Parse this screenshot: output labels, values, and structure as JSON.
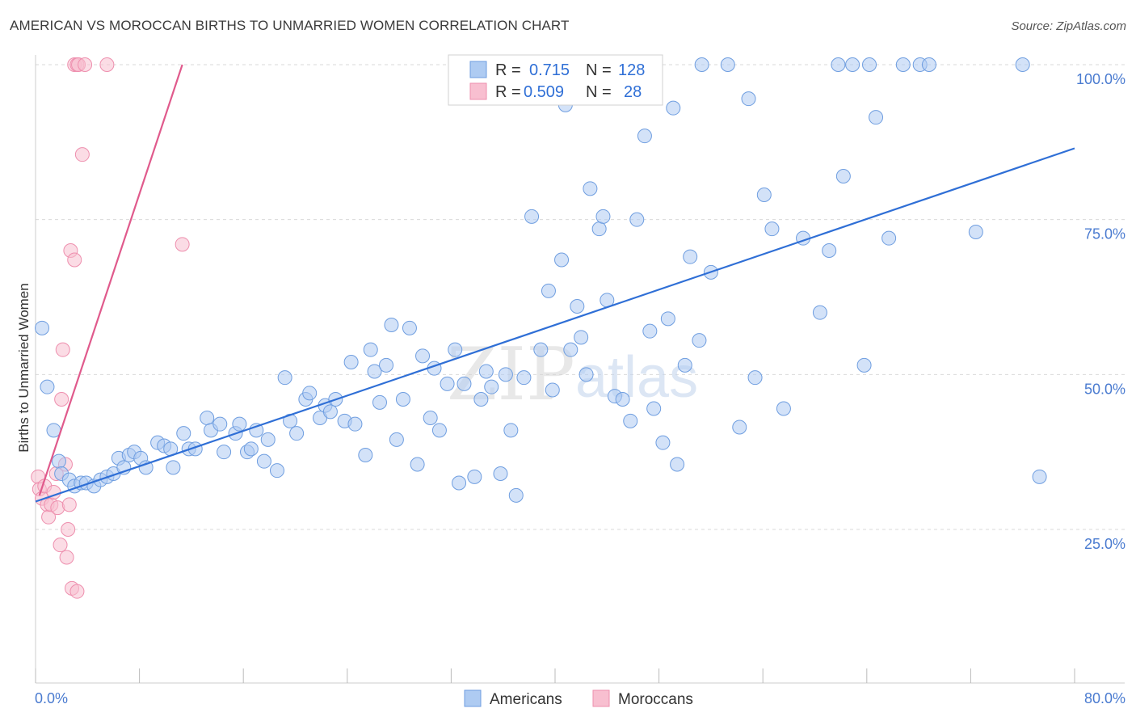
{
  "title": "AMERICAN VS MOROCCAN BIRTHS TO UNMARRIED WOMEN CORRELATION CHART",
  "source": "Source: ZipAtlas.com",
  "watermark": {
    "part1": "ZIP",
    "part2": "atlas"
  },
  "colors": {
    "americans_fill": "#aecbf2",
    "americans_stroke": "#6f9ee0",
    "americans_line": "#2f6fd6",
    "moroccans_fill": "#f8bfd0",
    "moroccans_stroke": "#ee8fae",
    "moroccans_line": "#e05a8c",
    "grid": "#d9d9d9",
    "tick_text": "#4a7bd0"
  },
  "legend": {
    "americans": {
      "r_label": "R =",
      "r_value": "0.715",
      "n_label": "N =",
      "n_value": "128"
    },
    "moroccans": {
      "r_label": "R =",
      "r_value": "0.509",
      "n_label": "N =",
      "n_value": "28"
    }
  },
  "bottom_legend": [
    "Americans",
    "Moroccans"
  ],
  "chart_data": {
    "type": "scatter",
    "title": "AMERICAN VS MOROCCAN BIRTHS TO UNMARRIED WOMEN CORRELATION CHART",
    "xlabel": "",
    "ylabel": "Births to Unmarried Women",
    "xlim": [
      0,
      80
    ],
    "ylim": [
      0,
      104
    ],
    "x_tick_labels": [
      {
        "value": 0,
        "label": "0.0%"
      },
      {
        "value": 80,
        "label": "80.0%"
      }
    ],
    "y_tick_labels": [
      {
        "value": 25,
        "label": "25.0%"
      },
      {
        "value": 50,
        "label": "50.0%"
      },
      {
        "value": 75,
        "label": "75.0%"
      },
      {
        "value": 100,
        "label": "100.0%"
      }
    ],
    "grid": true,
    "series": [
      {
        "name": "Americans",
        "trendline": {
          "x": [
            0,
            80
          ],
          "y": [
            29.5,
            86.5
          ]
        },
        "points": [
          [
            0.5,
            57.5
          ],
          [
            0.9,
            48
          ],
          [
            1.4,
            41
          ],
          [
            1.8,
            36
          ],
          [
            2,
            34
          ],
          [
            2.6,
            33
          ],
          [
            3,
            32
          ],
          [
            3.5,
            32.5
          ],
          [
            3.9,
            32.5
          ],
          [
            4.5,
            32
          ],
          [
            5,
            33
          ],
          [
            5.5,
            33.5
          ],
          [
            6,
            34
          ],
          [
            6.4,
            36.5
          ],
          [
            6.8,
            35
          ],
          [
            7.2,
            37
          ],
          [
            7.6,
            37.5
          ],
          [
            8.1,
            36.5
          ],
          [
            8.5,
            35
          ],
          [
            9.4,
            39
          ],
          [
            9.9,
            38.5
          ],
          [
            10.4,
            38
          ],
          [
            10.6,
            35
          ],
          [
            11.4,
            40.5
          ],
          [
            11.8,
            38
          ],
          [
            12.3,
            38
          ],
          [
            13.2,
            43
          ],
          [
            13.5,
            41
          ],
          [
            14.2,
            42
          ],
          [
            14.5,
            37.5
          ],
          [
            15.4,
            40.5
          ],
          [
            15.7,
            42
          ],
          [
            16.3,
            37.5
          ],
          [
            16.6,
            38
          ],
          [
            17,
            41
          ],
          [
            17.6,
            36
          ],
          [
            17.9,
            39.5
          ],
          [
            18.6,
            34.5
          ],
          [
            19.2,
            49.5
          ],
          [
            19.6,
            42.5
          ],
          [
            20.1,
            40.5
          ],
          [
            20.8,
            46
          ],
          [
            21.1,
            47
          ],
          [
            21.9,
            43
          ],
          [
            22.3,
            45
          ],
          [
            22.7,
            44
          ],
          [
            23.1,
            46
          ],
          [
            23.8,
            42.5
          ],
          [
            24.3,
            52
          ],
          [
            24.6,
            42
          ],
          [
            25.4,
            37
          ],
          [
            25.8,
            54
          ],
          [
            26.1,
            50.5
          ],
          [
            26.5,
            45.5
          ],
          [
            27,
            51.5
          ],
          [
            27.4,
            58
          ],
          [
            27.8,
            39.5
          ],
          [
            28.3,
            46
          ],
          [
            28.8,
            57.5
          ],
          [
            29.4,
            35.5
          ],
          [
            29.8,
            53
          ],
          [
            30.4,
            43
          ],
          [
            30.7,
            51
          ],
          [
            31.1,
            41
          ],
          [
            31.7,
            48.5
          ],
          [
            32.3,
            54
          ],
          [
            32.6,
            32.5
          ],
          [
            33,
            48.5
          ],
          [
            33.8,
            33.5
          ],
          [
            34.3,
            46
          ],
          [
            34.7,
            50.5
          ],
          [
            35.1,
            48
          ],
          [
            35.8,
            34
          ],
          [
            36.2,
            50
          ],
          [
            36.6,
            41
          ],
          [
            37,
            30.5
          ],
          [
            37.6,
            49.5
          ],
          [
            38.2,
            75.5
          ],
          [
            38.9,
            54
          ],
          [
            39.5,
            63.5
          ],
          [
            39.8,
            47.5
          ],
          [
            40.5,
            68.5
          ],
          [
            40.8,
            93.5
          ],
          [
            41.2,
            54
          ],
          [
            41.7,
            61
          ],
          [
            42,
            56
          ],
          [
            42.4,
            50
          ],
          [
            42.7,
            80
          ],
          [
            43.4,
            73.5
          ],
          [
            43.7,
            75.5
          ],
          [
            44,
            62
          ],
          [
            44.6,
            46.5
          ],
          [
            45.2,
            46
          ],
          [
            45.8,
            42.5
          ],
          [
            46.3,
            75
          ],
          [
            46.9,
            88.5
          ],
          [
            47.3,
            57
          ],
          [
            47.6,
            44.5
          ],
          [
            48.3,
            39
          ],
          [
            48.7,
            59
          ],
          [
            49.1,
            93
          ],
          [
            49.4,
            35.5
          ],
          [
            50,
            51.5
          ],
          [
            50.4,
            69
          ],
          [
            51.1,
            55.5
          ],
          [
            51.3,
            100
          ],
          [
            52,
            66.5
          ],
          [
            53.3,
            100
          ],
          [
            54.2,
            41.5
          ],
          [
            54.9,
            94.5
          ],
          [
            55.4,
            49.5
          ],
          [
            56.1,
            79
          ],
          [
            56.7,
            73.5
          ],
          [
            57.6,
            44.5
          ],
          [
            59.1,
            72
          ],
          [
            60.4,
            60
          ],
          [
            61.1,
            70
          ],
          [
            61.8,
            100
          ],
          [
            62.2,
            82
          ],
          [
            62.9,
            100
          ],
          [
            63.8,
            51.5
          ],
          [
            64.2,
            100
          ],
          [
            64.7,
            91.5
          ],
          [
            65.7,
            72
          ],
          [
            66.8,
            100
          ],
          [
            68.1,
            100
          ],
          [
            68.8,
            100
          ],
          [
            72.4,
            73
          ],
          [
            76,
            100
          ],
          [
            77.3,
            33.5
          ]
        ]
      },
      {
        "name": "Moroccans",
        "trendline": {
          "x": [
            0.3,
            11.3
          ],
          "y": [
            30.5,
            100
          ]
        },
        "points": [
          [
            0.2,
            33.5
          ],
          [
            0.3,
            31.5
          ],
          [
            0.5,
            30
          ],
          [
            0.7,
            32
          ],
          [
            0.9,
            29
          ],
          [
            1,
            27
          ],
          [
            1.2,
            29
          ],
          [
            1.4,
            31
          ],
          [
            1.6,
            34
          ],
          [
            1.7,
            28.5
          ],
          [
            1.9,
            22.5
          ],
          [
            2,
            46
          ],
          [
            2.1,
            54
          ],
          [
            2.3,
            35.5
          ],
          [
            2.4,
            20.5
          ],
          [
            2.5,
            25
          ],
          [
            2.6,
            29
          ],
          [
            2.7,
            70
          ],
          [
            2.8,
            15.5
          ],
          [
            3,
            100
          ],
          [
            3,
            68.5
          ],
          [
            3.2,
            15
          ],
          [
            3.2,
            100
          ],
          [
            3.3,
            100
          ],
          [
            3.6,
            85.5
          ],
          [
            3.8,
            100
          ],
          [
            5.5,
            100
          ],
          [
            11.3,
            71
          ]
        ]
      }
    ]
  }
}
